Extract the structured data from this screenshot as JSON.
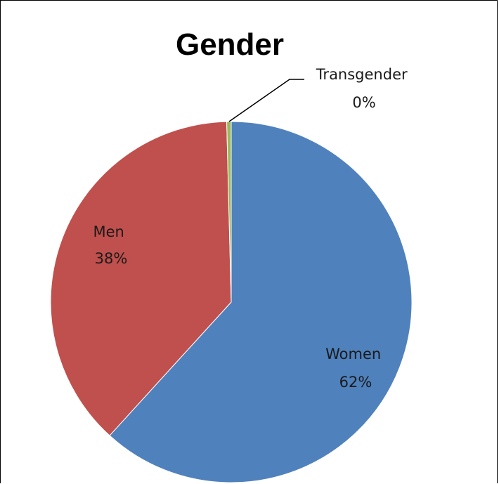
{
  "chart_data": {
    "type": "pie",
    "title": "Gender",
    "slices": [
      {
        "label": "Women",
        "percent_label": "62%",
        "value": 62,
        "color": "#4f81bd"
      },
      {
        "label": "Men",
        "percent_label": "38%",
        "value": 38,
        "color": "#c0504d"
      },
      {
        "label": "Transgender",
        "percent_label": "0%",
        "value": 0.4,
        "color": "#9bbb59"
      }
    ],
    "legend": "none",
    "start_angle": "top, clockwise"
  }
}
